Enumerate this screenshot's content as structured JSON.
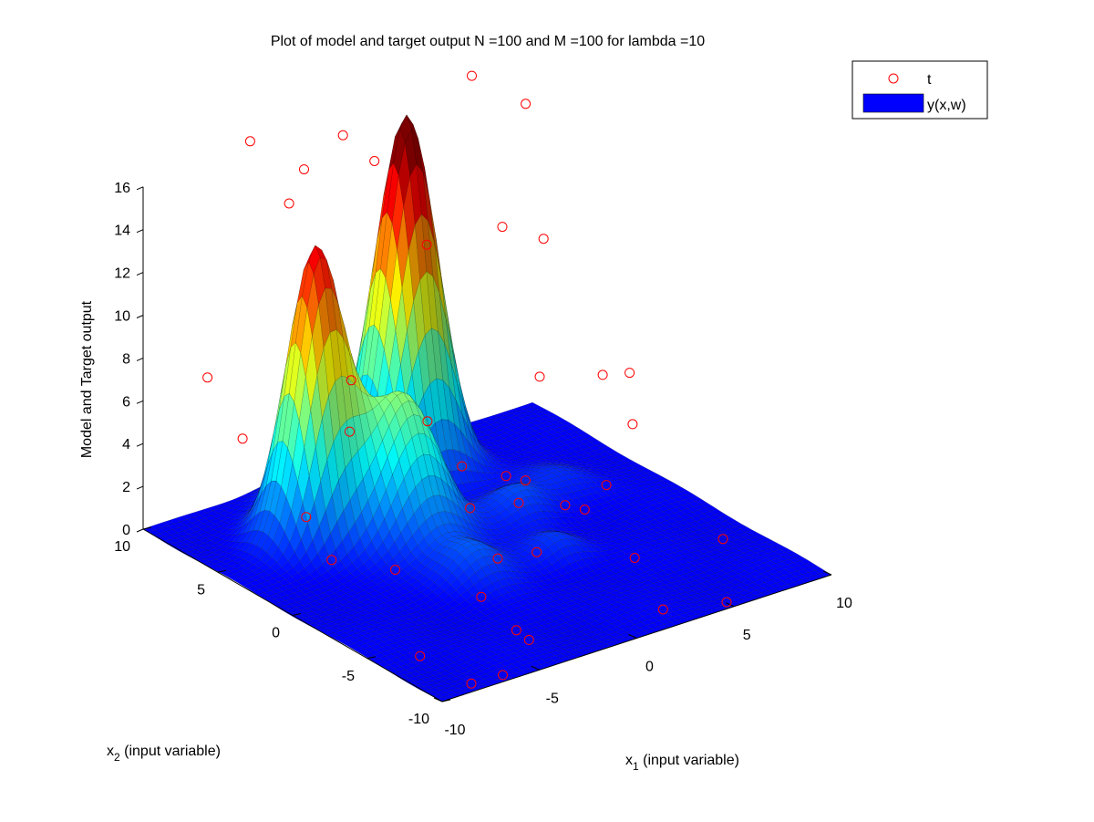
{
  "chart_data": {
    "type": "surface",
    "title": "Plot of model and target output N =100 and M =100 for lambda =10",
    "xlabel": "x",
    "xlabel_sub": "1",
    "xlabel_rest": " (input variable)",
    "ylabel": "x",
    "ylabel_sub": "2",
    "ylabel_rest": " (input variable)",
    "zlabel": "Model and Target output",
    "xlim": [
      -10,
      10
    ],
    "ylim": [
      -10,
      10
    ],
    "zlim": [
      0,
      16
    ],
    "xticks": [
      -10,
      -5,
      0,
      5,
      10
    ],
    "yticks": [
      -10,
      -5,
      0,
      5,
      10
    ],
    "zticks": [
      0,
      2,
      4,
      6,
      8,
      10,
      12,
      14,
      16
    ],
    "grid": false,
    "legend_position": "top-right",
    "colormap": "jet",
    "marker_color": "#ff0000",
    "surface_edge_color": "#000000",
    "legend": {
      "entries": [
        {
          "label": "t",
          "kind": "marker",
          "color": "#ff0000"
        },
        {
          "label": "y(x,w)",
          "kind": "patch",
          "color": "#0000ff"
        }
      ]
    },
    "surface": {
      "description_note": "",
      "bumps": [
        {
          "x": -5.0,
          "y": 5.0,
          "height": 13.5,
          "width": 1.2
        },
        {
          "x": 2.0,
          "y": 8.0,
          "height": 16.5,
          "width": 1.3
        },
        {
          "x": -2.0,
          "y": 3.0,
          "height": 6.6,
          "width": 1.5
        },
        {
          "x": -3.5,
          "y": 8.0,
          "height": 2.6,
          "width": 0.9
        },
        {
          "x": -2.0,
          "y": -1.5,
          "height": 1.6,
          "width": 1.2
        },
        {
          "x": 3.0,
          "y": 2.0,
          "height": 1.3,
          "width": 1.1
        },
        {
          "x": 2.0,
          "y": -2.0,
          "height": 1.0,
          "width": 1.0
        },
        {
          "x": 6.0,
          "y": 3.0,
          "height": 0.7,
          "width": 1.3
        }
      ]
    },
    "series": [
      {
        "name": "t",
        "points": [
          {
            "x": -8.0,
            "y": 0.0,
            "z": 2.0
          },
          {
            "x": -9.0,
            "y": 7.0,
            "z": 8.0
          },
          {
            "x": -9.5,
            "y": 4.0,
            "z": 6.5
          },
          {
            "x": -7.0,
            "y": 3.0,
            "z": 2.5
          },
          {
            "x": -9.6,
            "y": -8.0,
            "z": 1.2
          },
          {
            "x": -8.5,
            "y": -10.0,
            "z": 0.4
          },
          {
            "x": -3.0,
            "y": -3.5,
            "z": 0.2
          },
          {
            "x": -4.0,
            "y": 4.0,
            "z": 5.2
          },
          {
            "x": -5.5,
            "y": -1.0,
            "z": 1.2
          },
          {
            "x": -3.5,
            "y": -6.5,
            "z": 0.0
          },
          {
            "x": -6.5,
            "y": -9.5,
            "z": 0.0
          },
          {
            "x": -2.0,
            "y": 6.5,
            "z": 6.0
          },
          {
            "x": -4.0,
            "y": -8.0,
            "z": 0.3
          },
          {
            "x": 5.0,
            "y": -9.5,
            "z": 0.0
          },
          {
            "x": -2.5,
            "y": 9.0,
            "z": 15.0
          },
          {
            "x": -4.5,
            "y": 10.0,
            "z": 16.5
          },
          {
            "x": -0.5,
            "y": 9.0,
            "z": 16.0
          },
          {
            "x": 1.5,
            "y": 9.5,
            "z": 14.0
          },
          {
            "x": -2.5,
            "y": 10.0,
            "z": 13.0
          },
          {
            "x": 1.5,
            "y": 6.0,
            "z": 11.5
          },
          {
            "x": 5.0,
            "y": 5.5,
            "z": 11.5
          },
          {
            "x": 8.5,
            "y": 8.5,
            "z": 15.0
          },
          {
            "x": 6.5,
            "y": 9.5,
            "z": 16.5
          },
          {
            "x": 7.5,
            "y": 6.0,
            "z": 10.0
          },
          {
            "x": 5.0,
            "y": 3.0,
            "z": 5.5
          },
          {
            "x": 0.0,
            "y": 4.0,
            "z": 4.5
          },
          {
            "x": 1.0,
            "y": 3.0,
            "z": 2.5
          },
          {
            "x": 2.5,
            "y": 2.0,
            "z": 2.0
          },
          {
            "x": 3.5,
            "y": 2.0,
            "z": 1.5
          },
          {
            "x": 2.0,
            "y": 0.5,
            "z": 1.5
          },
          {
            "x": 4.0,
            "y": 0.0,
            "z": 1.0
          },
          {
            "x": 5.0,
            "y": 0.0,
            "z": 0.5
          },
          {
            "x": 6.5,
            "y": 0.5,
            "z": 1.0
          },
          {
            "x": 9.0,
            "y": 2.0,
            "z": 2.5
          },
          {
            "x": 9.0,
            "y": 4.0,
            "z": 4.0
          },
          {
            "x": 10.0,
            "y": 3.5,
            "z": 4.0
          },
          {
            "x": 1.0,
            "y": -2.0,
            "z": 0.5
          },
          {
            "x": -1.0,
            "y": -2.0,
            "z": 0.8
          },
          {
            "x": 4.5,
            "y": -4.0,
            "z": 0.0
          },
          {
            "x": 2.5,
            "y": -8.5,
            "z": 0.0
          },
          {
            "x": 7.5,
            "y": -6.0,
            "z": 0.8
          },
          {
            "x": -0.5,
            "y": 0.5,
            "z": 2.0
          }
        ]
      },
      {
        "name": "y(x,w)",
        "kind": "surface"
      }
    ]
  }
}
